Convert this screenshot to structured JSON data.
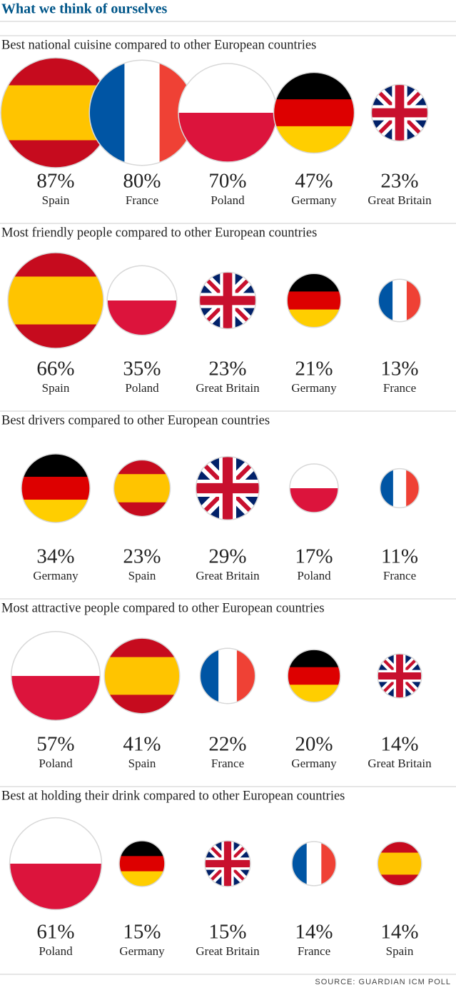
{
  "title": "What we think of ourselves",
  "source": "SOURCE: GUARDIAN ICM POLL",
  "flags": {
    "Spain": {
      "stripes": "horizontal",
      "colors": [
        "#c60b1e",
        "#ffc400",
        "#ffc400",
        "#c60b1e"
      ]
    },
    "France": {
      "stripes": "vertical",
      "colors": [
        "#0055a4",
        "#ffffff",
        "#ef4135"
      ]
    },
    "Poland": {
      "stripes": "horizontal",
      "colors": [
        "#ffffff",
        "#dc143c"
      ]
    },
    "Germany": {
      "stripes": "horizontal",
      "colors": [
        "#000000",
        "#dd0000",
        "#ffce00"
      ]
    },
    "Great Britain": {
      "stripes": "cross",
      "colors": [
        "#012169",
        "#ffffff",
        "#c8102e"
      ]
    }
  },
  "chart_data": [
    {
      "type": "bubble",
      "title": "Best national cuisine compared to other European countries",
      "categories": [
        "Spain",
        "France",
        "Poland",
        "Germany",
        "Great Britain"
      ],
      "values": [
        87,
        80,
        70,
        47,
        23
      ],
      "value_labels": [
        "87%",
        "80%",
        "70%",
        "47%",
        "23%"
      ]
    },
    {
      "type": "bubble",
      "title": "Most friendly people compared to other European countries",
      "categories": [
        "Spain",
        "Poland",
        "Great Britain",
        "Germany",
        "France"
      ],
      "values": [
        66,
        35,
        23,
        21,
        13
      ],
      "value_labels": [
        "66%",
        "35%",
        "23%",
        "21%",
        "13%"
      ]
    },
    {
      "type": "bubble",
      "title": "Best drivers compared to other European countries",
      "categories": [
        "Germany",
        "Spain",
        "Great Britain",
        "Poland",
        "France"
      ],
      "values": [
        34,
        23,
        29,
        17,
        11
      ],
      "value_labels": [
        "34%",
        "23%",
        "29%",
        "17%",
        "11%"
      ]
    },
    {
      "type": "bubble",
      "title": "Most attractive people compared to other European countries",
      "categories": [
        "Poland",
        "Spain",
        "France",
        "Germany",
        "Great Britain"
      ],
      "values": [
        57,
        41,
        22,
        20,
        14
      ],
      "value_labels": [
        "57%",
        "41%",
        "22%",
        "20%",
        "14%"
      ]
    },
    {
      "type": "bubble",
      "title": "Best at holding their drink compared to other European countries",
      "categories": [
        "Poland",
        "Germany",
        "Great Britain",
        "France",
        "Spain"
      ],
      "values": [
        61,
        15,
        15,
        14,
        14
      ],
      "value_labels": [
        "61%",
        "15%",
        "15%",
        "14%",
        "14%"
      ]
    }
  ]
}
